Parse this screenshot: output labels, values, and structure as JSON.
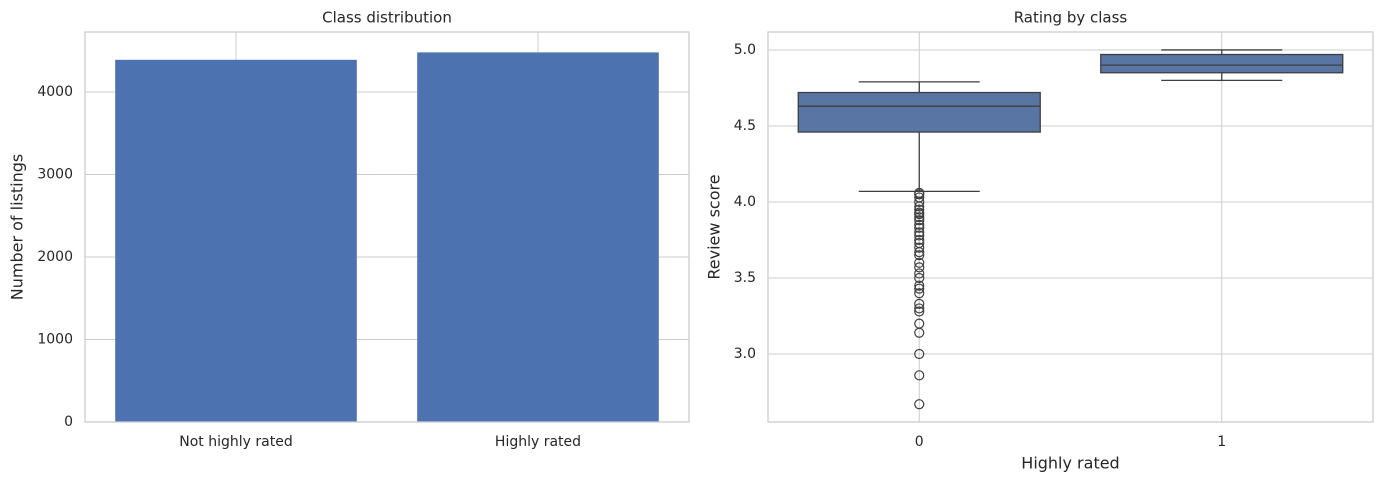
{
  "chart_data": [
    {
      "type": "bar",
      "title": "Class distribution",
      "ylabel": "Number of listings",
      "categories": [
        "Not highly rated",
        "Highly rated"
      ],
      "values": [
        4390,
        4480
      ],
      "color": "#4c72b0",
      "ylim": [
        0,
        4727
      ],
      "yticks": [
        0,
        1000,
        2000,
        3000,
        4000
      ],
      "grid": true
    },
    {
      "type": "box",
      "title": "Rating by class",
      "xlabel": "Highly rated",
      "ylabel": "Review score",
      "categories": [
        "0",
        "1"
      ],
      "color": "#5875a4",
      "boxes": [
        {
          "min": 4.07,
          "q1": 4.46,
          "median": 4.63,
          "q3": 4.72,
          "max": 4.79,
          "outliers": [
            4.06,
            4.05,
            4.03,
            4.0,
            3.97,
            3.95,
            3.93,
            3.92,
            3.9,
            3.88,
            3.85,
            3.83,
            3.8,
            3.78,
            3.75,
            3.73,
            3.7,
            3.67,
            3.65,
            3.6,
            3.57,
            3.53,
            3.5,
            3.45,
            3.43,
            3.4,
            3.33,
            3.3,
            3.28,
            3.2,
            3.14,
            3.0,
            2.86,
            2.67
          ]
        },
        {
          "min": 4.8,
          "q1": 4.85,
          "median": 4.9,
          "q3": 4.97,
          "max": 5.0,
          "outliers": []
        }
      ],
      "ylim": [
        2.553,
        5.118
      ],
      "yticks": [
        {
          "value": 3,
          "label": "3.0"
        },
        3.5,
        {
          "value": 4,
          "label": "4.0"
        },
        4.5,
        {
          "value": 5,
          "label": "5.0"
        }
      ],
      "grid": true
    }
  ]
}
